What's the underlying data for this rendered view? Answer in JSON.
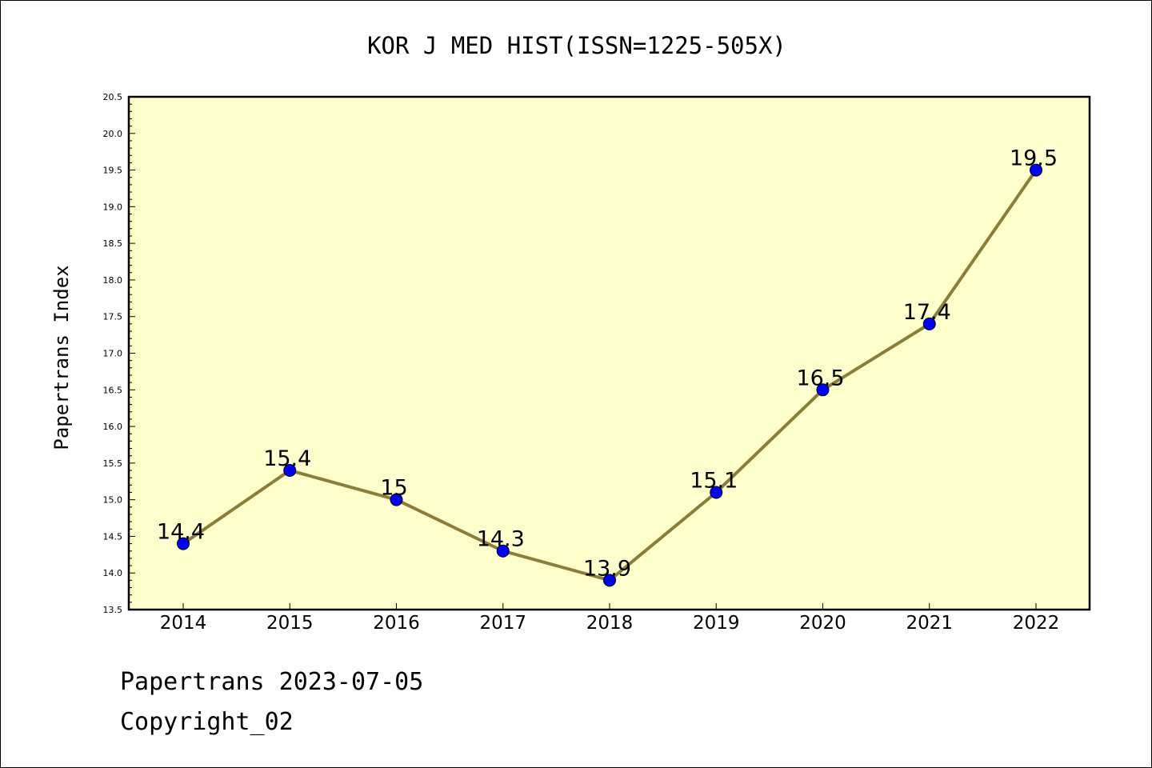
{
  "chart_data": {
    "type": "line",
    "title": "KOR J MED HIST(ISSN=1225-505X)",
    "xlabel": "",
    "ylabel": "Papertrans Index",
    "categories": [
      "2014",
      "2015",
      "2016",
      "2017",
      "2018",
      "2019",
      "2020",
      "2021",
      "2022"
    ],
    "series": [
      {
        "values": [
          14.4,
          15.4,
          15,
          14.3,
          13.9,
          15.1,
          16.5,
          17.4,
          19.5
        ],
        "labels": [
          "14.4",
          "15.4",
          "15",
          "14.3",
          "13.9",
          "15.1",
          "16.5",
          "17.4",
          "19.5"
        ]
      }
    ],
    "ylim": [
      13.5,
      20.5
    ],
    "yticks": [
      13.5,
      14.0,
      14.5,
      15.0,
      15.5,
      16.0,
      16.5,
      17.0,
      17.5,
      18.0,
      18.5,
      19.0,
      19.5,
      20.0,
      20.5
    ],
    "grid": false,
    "colors": {
      "plot_background": "#ffffcc",
      "line": "#8b7d3a",
      "marker": "#0000ff"
    }
  },
  "footer": {
    "line1": "Papertrans 2023-07-05",
    "line2": "Copyright_02"
  }
}
